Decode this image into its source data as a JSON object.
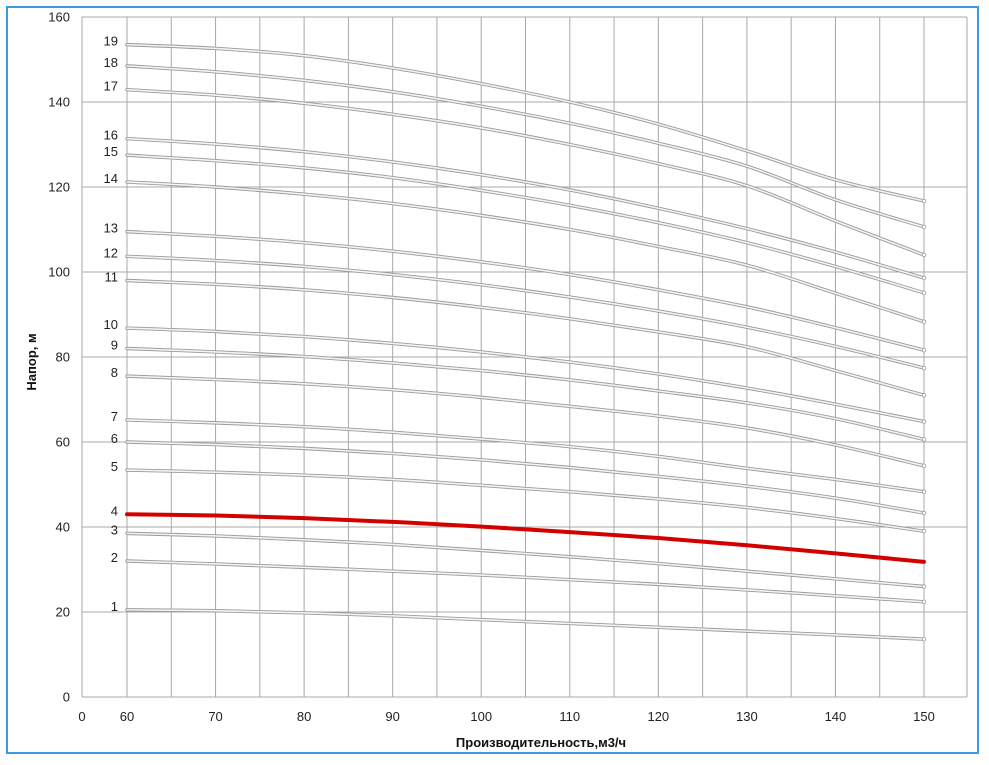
{
  "chart_data": {
    "type": "line",
    "title": "",
    "xlabel": "Производительность,м3/ч",
    "ylabel": "Напор, м",
    "xlim": [
      0,
      150
    ],
    "ylim": [
      0,
      160
    ],
    "x_ticks": [
      "0",
      "60",
      "70",
      "80",
      "90",
      "100",
      "110",
      "120",
      "130",
      "140",
      "150"
    ],
    "y_ticks": [
      "0",
      "20",
      "40",
      "60",
      "80",
      "100",
      "120",
      "140",
      "160"
    ],
    "x_axis_note": "axis break between 0 and 60",
    "grid": true,
    "legend": "none (curves labelled 1–19 at the left end)",
    "colors": {
      "curve": "#c8c8c8",
      "highlight": "#d40000",
      "grid": "#a8a8a8",
      "frame": "#3c9ae0"
    },
    "x": [
      60,
      70,
      80,
      90,
      100,
      110,
      120,
      130,
      140,
      150
    ],
    "series": [
      {
        "name": "1",
        "values": [
          20.5,
          20.3,
          19.8,
          19.1,
          18.2,
          17.3,
          16.4,
          15.5,
          14.6,
          13.6
        ]
      },
      {
        "name": "2",
        "values": [
          32.0,
          31.3,
          30.5,
          29.6,
          28.7,
          27.6,
          26.5,
          25.2,
          23.8,
          22.4
        ]
      },
      {
        "name": "3",
        "values": [
          38.5,
          37.9,
          37.0,
          35.9,
          34.5,
          33.0,
          31.4,
          29.6,
          27.8,
          26.0
        ]
      },
      {
        "name": "4",
        "values": [
          43.0,
          42.7,
          42.1,
          41.2,
          40.1,
          38.8,
          37.4,
          35.7,
          33.8,
          31.8
        ],
        "highlight": true
      },
      {
        "name": "5",
        "values": [
          53.4,
          52.9,
          52.2,
          51.2,
          49.8,
          48.3,
          46.6,
          44.6,
          42.0,
          39.0
        ]
      },
      {
        "name": "6",
        "values": [
          60.0,
          59.4,
          58.5,
          57.3,
          55.8,
          54.0,
          51.9,
          49.6,
          46.8,
          43.3
        ]
      },
      {
        "name": "7",
        "values": [
          65.2,
          64.5,
          63.6,
          62.3,
          60.7,
          58.9,
          56.6,
          53.8,
          51.2,
          48.3
        ]
      },
      {
        "name": "8",
        "values": [
          75.5,
          74.7,
          73.7,
          72.3,
          70.5,
          68.4,
          66.1,
          63.3,
          59.3,
          54.4
        ]
      },
      {
        "name": "9",
        "values": [
          82.0,
          81.2,
          80.1,
          78.6,
          76.8,
          74.6,
          72.0,
          69.2,
          65.5,
          60.6
        ]
      },
      {
        "name": "10",
        "values": [
          86.8,
          86.0,
          84.8,
          83.2,
          81.2,
          78.8,
          76.0,
          72.7,
          68.9,
          64.8
        ]
      },
      {
        "name": "11",
        "values": [
          98.0,
          97.1,
          95.8,
          94.0,
          91.7,
          89.0,
          85.9,
          82.4,
          76.8,
          71.0
        ]
      },
      {
        "name": "12",
        "values": [
          103.7,
          102.7,
          101.3,
          99.4,
          97.0,
          94.1,
          90.8,
          87.0,
          82.5,
          77.4
        ]
      },
      {
        "name": "13",
        "values": [
          109.5,
          108.4,
          106.9,
          104.9,
          102.4,
          99.4,
          95.8,
          91.8,
          86.9,
          81.6
        ]
      },
      {
        "name": "14",
        "values": [
          121.2,
          120.0,
          118.3,
          116.1,
          113.3,
          110.0,
          106.0,
          101.6,
          95.0,
          88.3
        ]
      },
      {
        "name": "15",
        "values": [
          127.5,
          126.2,
          124.5,
          122.2,
          119.2,
          115.7,
          111.6,
          106.9,
          101.3,
          95.1
        ]
      },
      {
        "name": "16",
        "values": [
          131.4,
          130.1,
          128.3,
          125.9,
          122.9,
          119.3,
          115.0,
          110.2,
          104.7,
          98.6
        ]
      },
      {
        "name": "17",
        "values": [
          142.9,
          141.6,
          139.7,
          137.1,
          133.9,
          130.0,
          125.5,
          120.3,
          112.0,
          104.0
        ]
      },
      {
        "name": "18",
        "values": [
          148.5,
          147.1,
          145.1,
          142.4,
          139.0,
          135.0,
          130.3,
          124.9,
          117.0,
          110.6
        ]
      },
      {
        "name": "19",
        "values": [
          153.5,
          152.6,
          150.9,
          148.0,
          144.3,
          140.0,
          134.8,
          128.5,
          121.7,
          116.7
        ]
      }
    ]
  }
}
